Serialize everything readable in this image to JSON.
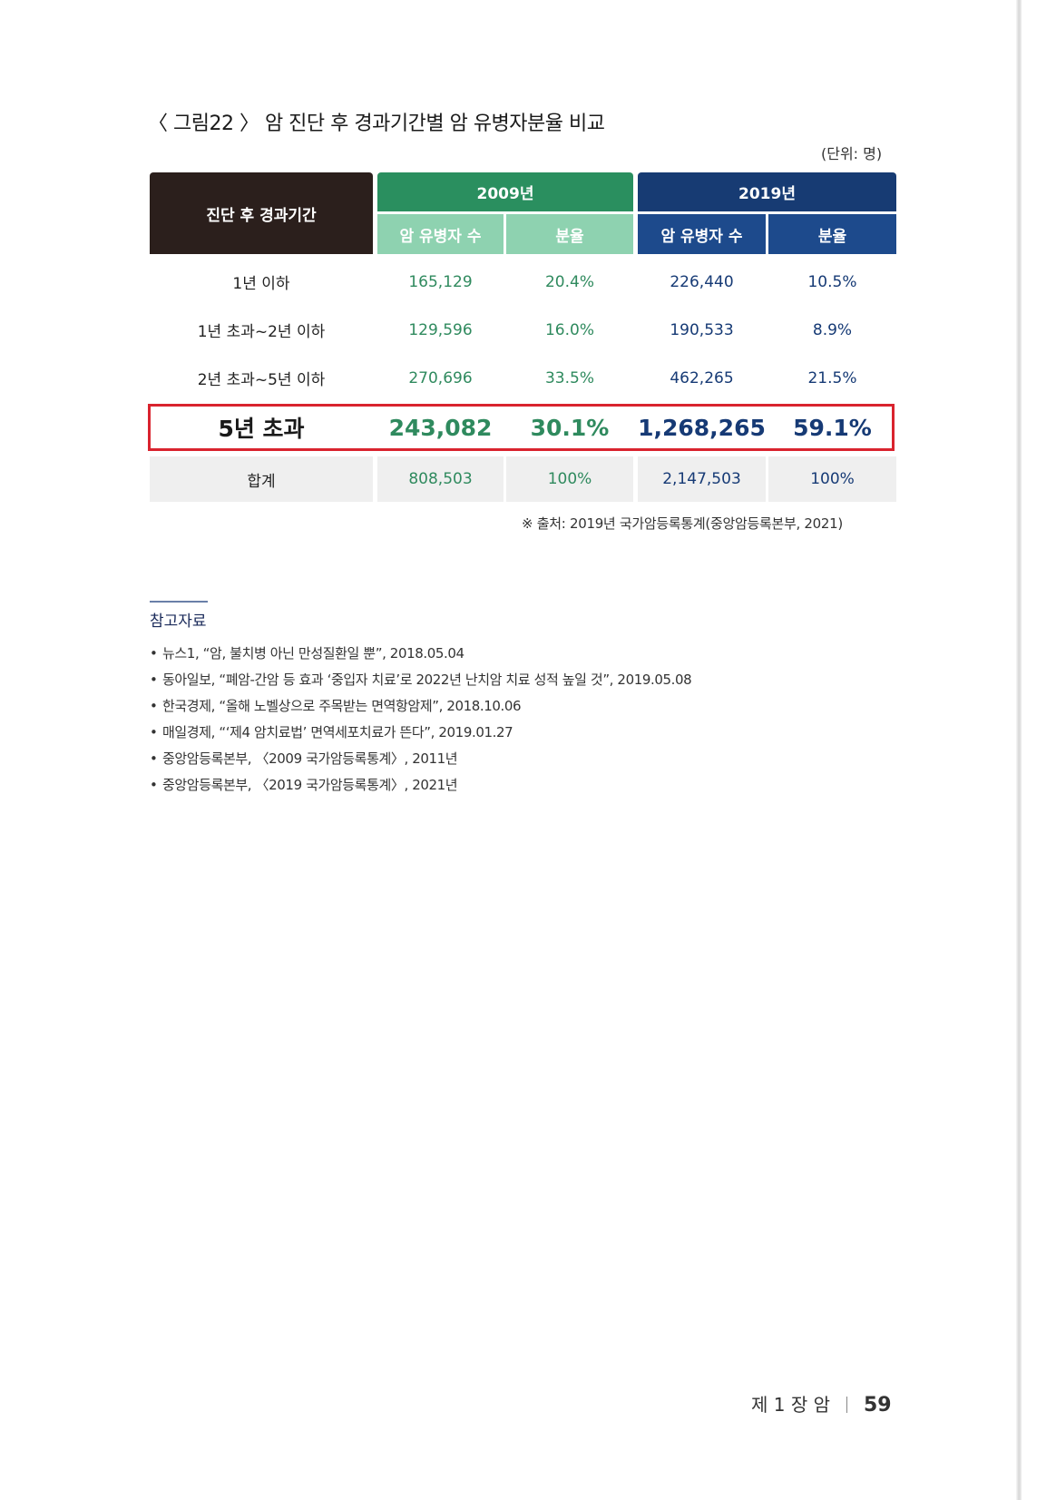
{
  "figure": {
    "title": "〈 그림22 〉 암 진단 후 경과기간별 암 유병자분율 비교",
    "unit": "(단위: 명)"
  },
  "table": {
    "header_period": "진단 후 경과기간",
    "year_2009": "2009년",
    "year_2019": "2019년",
    "col_patients": "암 유병자 수",
    "col_ratio": "분율",
    "rows": [
      {
        "period": "1년 이하",
        "p2009": "165,129",
        "r2009": "20.4%",
        "p2019": "226,440",
        "r2019": "10.5%"
      },
      {
        "period": "1년 초과~2년 이하",
        "p2009": "129,596",
        "r2009": "16.0%",
        "p2019": "190,533",
        "r2019": "8.9%"
      },
      {
        "period": "2년 초과~5년 이하",
        "p2009": "270,696",
        "r2009": "33.5%",
        "p2019": "462,265",
        "r2019": "21.5%"
      }
    ],
    "highlight": {
      "period": "5년 초과",
      "p2009": "243,082",
      "r2009": "30.1%",
      "p2019": "1,268,265",
      "r2019": "59.1%"
    },
    "total": {
      "period": "합계",
      "p2009": "808,503",
      "r2009": "100%",
      "p2019": "2,147,503",
      "r2019": "100%"
    },
    "source": "※ 출처: 2019년 국가암등록통계(중앙암등록본부, 2021)"
  },
  "references": {
    "title": "참고자료",
    "items": [
      "뉴스1, “암, 불치병 아닌 만성질환일 뿐”, 2018.05.04",
      "동아일보, “폐암-간암 등 효과 ‘중입자 치료’로 2022년 난치암 치료 성적 높일 것”, 2019.05.08",
      "한국경제, “올해 노벨상으로 주목받는 면역항암제”, 2018.10.06",
      "매일경제, “‘제4 암치료법’ 면역세포치료가 뜬다”, 2019.01.27",
      "중앙암등록본부, 〈2009 국가암등록통계〉, 2011년",
      "중앙암등록본부, 〈2019 국가암등록통계〉, 2021년"
    ]
  },
  "footer": {
    "chapter": "제 1 장 암",
    "page": "59"
  }
}
